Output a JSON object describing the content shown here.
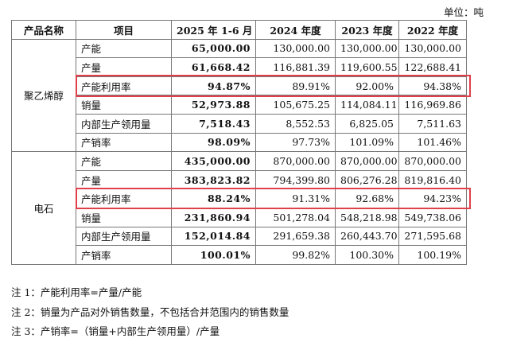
{
  "unit": "单位：吨",
  "table": {
    "header": [
      "产品名称",
      "项目",
      "2025 年 1-6 月",
      "2024 年度",
      "2023 年度",
      "2022 年度"
    ],
    "groups": [
      {
        "name": "聚乙烯醇",
        "rows": [
          [
            "产能",
            "65,000.00",
            "130,000.00",
            "130,000.00",
            "130,000.00"
          ],
          [
            "产量",
            "61,668.42",
            "116,881.39",
            "119,600.55",
            "122,688.41"
          ],
          [
            "产能利用率",
            "94.87%",
            "89.91%",
            "92.00%",
            "94.38%"
          ],
          [
            "销量",
            "52,973.88",
            "105,675.25",
            "114,084.11",
            "116,969.86"
          ],
          [
            "内部生产领用量",
            "7,518.43",
            "8,552.53",
            "6,825.05",
            "7,511.63"
          ],
          [
            "产销率",
            "98.09%",
            "97.73%",
            "101.09%",
            "101.46%"
          ]
        ]
      },
      {
        "name": "电石",
        "rows": [
          [
            "产能",
            "435,000.00",
            "870,000.00",
            "870,000.00",
            "870,000.00"
          ],
          [
            "产量",
            "383,823.82",
            "794,399.80",
            "806,276.28",
            "819,816.40"
          ],
          [
            "产能利用率",
            "88.24%",
            "91.31%",
            "92.68%",
            "94.23%"
          ],
          [
            "销量",
            "231,860.94",
            "501,278.04",
            "548,218.98",
            "549,738.06"
          ],
          [
            "内部生产领用量",
            "152,014.84",
            "291,659.38",
            "260,443.70",
            "271,595.68"
          ],
          [
            "产销率",
            "100.01%",
            "99.82%",
            "100.30%",
            "100.19%"
          ]
        ]
      }
    ]
  },
  "notes": [
    "注 1：产能利用率=产量/产能",
    "注 2：销量为产品对外销售数量，不包括合并范围内的销售数量",
    "注 3：产销率=（销量+内部生产领用量）/产量"
  ]
}
